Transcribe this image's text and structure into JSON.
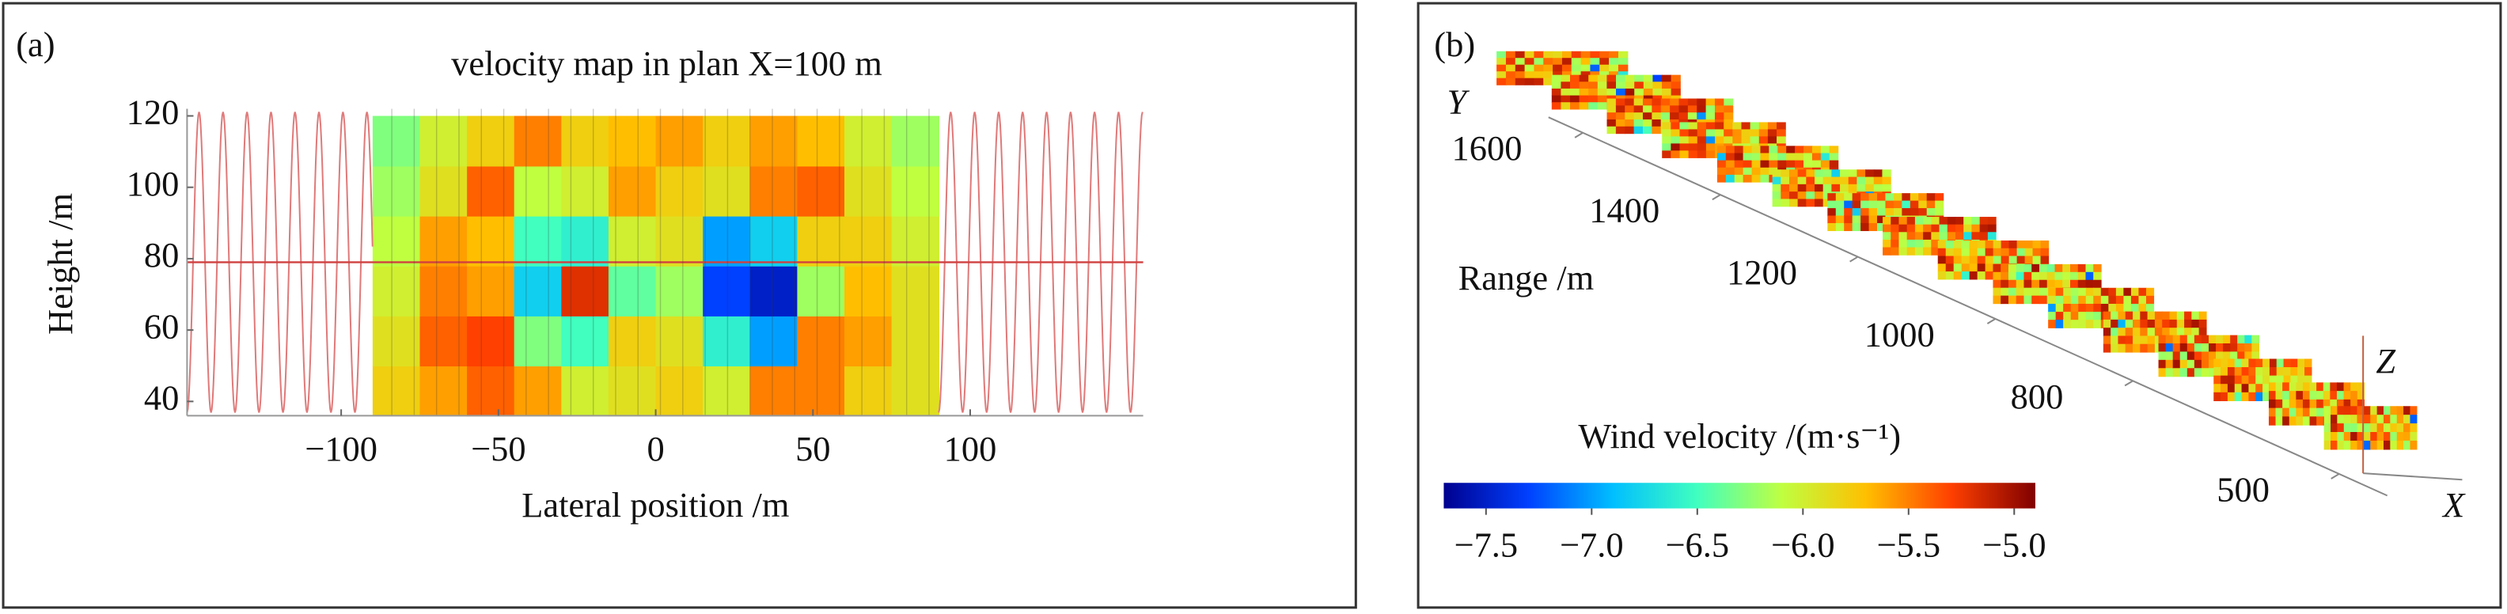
{
  "chart_data": [
    {
      "type": "heatmap",
      "panel_label": "(a)",
      "title": "velocity map in plan X=100 m",
      "xlabel": "Lateral position /m",
      "ylabel": "Height /m",
      "xlim": [
        -149,
        155
      ],
      "ylim": [
        36,
        122
      ],
      "xticks": [
        {
          "value": -100,
          "label": "−100"
        },
        {
          "value": -50,
          "label": "−50"
        },
        0,
        50,
        100
      ],
      "yticks": [
        40,
        60,
        80,
        100,
        120
      ],
      "xbins": [
        -90,
        -75,
        -60,
        -45,
        -30,
        -15,
        0,
        15,
        30,
        45,
        60,
        75,
        90
      ],
      "ybins": [
        36,
        50,
        64,
        78,
        92,
        106,
        120
      ],
      "z": [
        [
          -5.8,
          -5.6,
          -5.4,
          -5.6,
          -6.0,
          -5.9,
          -5.8,
          -6.0,
          -5.5,
          -5.5,
          -5.8,
          -5.9
        ],
        [
          -5.9,
          -5.4,
          -5.3,
          -6.3,
          -6.5,
          -5.8,
          -5.9,
          -6.6,
          -7.0,
          -5.5,
          -5.6,
          -5.9
        ],
        [
          -6.0,
          -5.5,
          -5.6,
          -6.8,
          -5.2,
          -6.4,
          -6.2,
          -7.3,
          -7.5,
          -6.2,
          -5.7,
          -5.9
        ],
        [
          -6.1,
          -5.6,
          -5.7,
          -6.5,
          -6.6,
          -6.0,
          -5.9,
          -7.0,
          -6.8,
          -5.8,
          -5.8,
          -6.0
        ],
        [
          -6.2,
          -5.9,
          -5.4,
          -6.1,
          -6.0,
          -5.6,
          -5.8,
          -5.9,
          -5.5,
          -5.4,
          -5.9,
          -6.1
        ],
        [
          -6.3,
          -6.0,
          -5.8,
          -5.5,
          -5.8,
          -5.7,
          -5.6,
          -5.8,
          -5.6,
          -5.7,
          -6.0,
          -6.2
        ]
      ]
    },
    {
      "type": "slices",
      "panel_label": "(b)",
      "xlabel": "X",
      "ylabel": "Y",
      "zlabel": "Z",
      "range_label": "Range /m",
      "range_lim": [
        430,
        1650
      ],
      "range_ticks": [
        500,
        800,
        1000,
        1200,
        1400,
        1600
      ],
      "colorbar": {
        "label": "Wind velocity /(m·s⁻¹)",
        "clim": [
          -7.7,
          -4.9
        ],
        "ticks": [
          {
            "value": -7.5,
            "label": "−7.5"
          },
          {
            "value": -7.0,
            "label": "−7.0"
          },
          {
            "value": -6.5,
            "label": "−6.5"
          },
          {
            "value": -6.0,
            "label": "−6.0"
          },
          {
            "value": -5.5,
            "label": "−5.5"
          },
          {
            "value": -5.0,
            "label": "−5.0"
          }
        ],
        "colors": [
          "#00008f",
          "#0040ff",
          "#00bfff",
          "#40ffbf",
          "#bfff40",
          "#ffbf00",
          "#ff4000",
          "#800000"
        ]
      }
    }
  ]
}
